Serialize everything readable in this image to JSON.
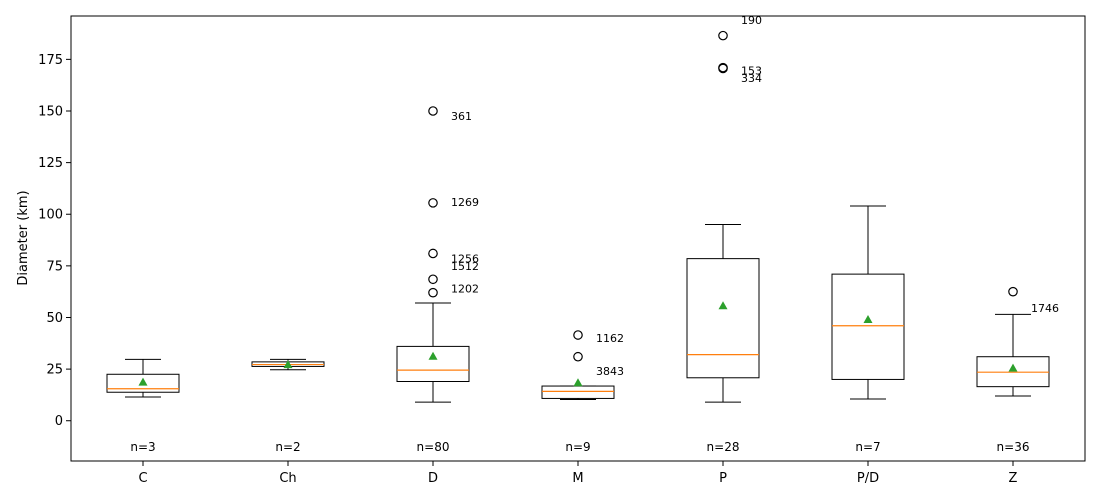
{
  "chart_data": {
    "type": "box",
    "title": "",
    "xlabel": "",
    "ylabel": "Diameter (km)",
    "ylim": [
      -19.5,
      196
    ],
    "yticks": [
      0,
      25,
      50,
      75,
      100,
      125,
      150,
      175
    ],
    "grid": false,
    "colors": {
      "box": "#000000",
      "median": "#ff7f0e",
      "mean": "#2ca02c",
      "outlier": "#000000"
    },
    "categories": [
      "C",
      "Ch",
      "D",
      "M",
      "P",
      "P/D",
      "Z"
    ],
    "boxes": [
      {
        "category": "C",
        "whisker_low": 11.5,
        "q1": 13.8,
        "median": 15.5,
        "q3": 22.5,
        "whisker_high": 29.7,
        "mean": 18.7,
        "n_label": "n=3",
        "outliers": []
      },
      {
        "category": "Ch",
        "whisker_low": 24.7,
        "q1": 26.3,
        "median": 27.2,
        "q3": 28.5,
        "whisker_high": 29.7,
        "mean": 27.2,
        "n_label": "n=2",
        "outliers": []
      },
      {
        "category": "D",
        "whisker_low": 9.0,
        "q1": 19.0,
        "median": 24.5,
        "q3": 36.0,
        "whisker_high": 57.0,
        "mean": 31.2,
        "n_label": "n=80",
        "outliers": [
          {
            "value": 150.0,
            "label": "361",
            "label_y": 147.5
          },
          {
            "value": 105.5,
            "label": "1269",
            "label_y": 106.0
          },
          {
            "value": 81.0,
            "label": "1256",
            "label_y": 78.5
          },
          {
            "value": 68.5,
            "label": "1512",
            "label_y": 75.0
          },
          {
            "value": 62.0,
            "label": "1202",
            "label_y": 64.0
          }
        ]
      },
      {
        "category": "M",
        "whisker_low": 10.3,
        "q1": 10.8,
        "median": 14.2,
        "q3": 16.8,
        "whisker_high": 16.8,
        "mean": 18.4,
        "n_label": "n=9",
        "outliers": [
          {
            "value": 41.5,
            "label": "1162",
            "label_y": 40.0
          },
          {
            "value": 31.0,
            "label": "3843",
            "label_y": 24.0
          }
        ]
      },
      {
        "category": "P",
        "whisker_low": 9.0,
        "q1": 20.8,
        "median": 32.0,
        "q3": 78.5,
        "whisker_high": 95.0,
        "mean": 55.7,
        "n_label": "n=28",
        "outliers": [
          {
            "value": 186.5,
            "label": "190",
            "label_y": 194.0
          },
          {
            "value": 171.0,
            "label": "153",
            "label_y": 169.5
          },
          {
            "value": 170.6,
            "label": "334",
            "label_y": 166.0
          }
        ]
      },
      {
        "category": "P/D",
        "whisker_low": 10.5,
        "q1": 20.0,
        "median": 46.0,
        "q3": 71.0,
        "whisker_high": 104.0,
        "mean": 49.0,
        "n_label": "n=7",
        "outliers": []
      },
      {
        "category": "Z",
        "whisker_low": 12.0,
        "q1": 16.5,
        "median": 23.5,
        "q3": 31.0,
        "whisker_high": 51.5,
        "mean": 25.5,
        "n_label": "n=36",
        "outliers": [
          {
            "value": 62.5,
            "label": "1746",
            "label_y": 54.5
          }
        ]
      }
    ]
  }
}
